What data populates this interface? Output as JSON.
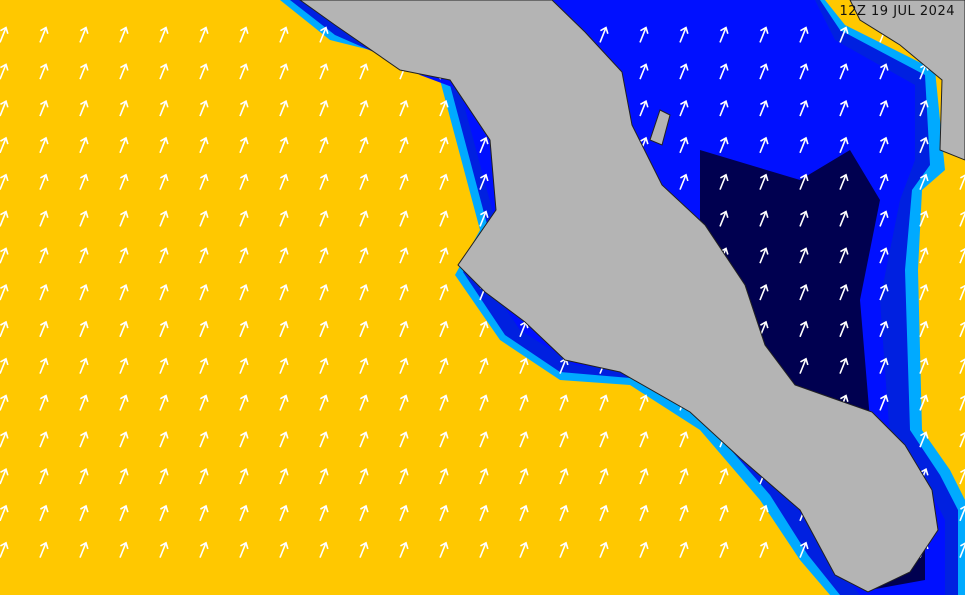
{
  "map": {
    "timestamp": "12Z 19 JUL 2024",
    "colors": {
      "ocean_low": "#ffc800",
      "band_light": "#00aaff",
      "band_mid": "#0030ff",
      "band_dark": "#0000b0",
      "gulf_deep": "#000040",
      "land": "#b4b4b4",
      "arrow": "#ffffff"
    },
    "arrow_icon": "direction-arrow",
    "arrow_direction": "north-northeast"
  }
}
